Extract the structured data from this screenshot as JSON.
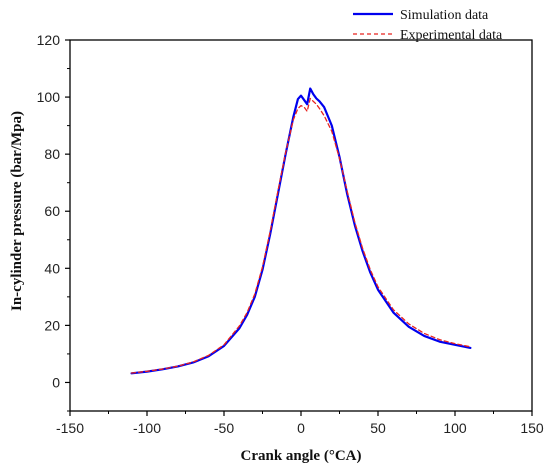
{
  "chart_data": {
    "type": "line",
    "title": "",
    "xlabel": "Crank angle (°CA)",
    "ylabel": "In-cylinder pressure (bar/Mpa)",
    "xlim": [
      -150,
      150
    ],
    "ylim": [
      -10,
      120
    ],
    "xticks": [
      -150,
      -100,
      -50,
      0,
      50,
      100,
      150
    ],
    "yticks": [
      0,
      20,
      40,
      60,
      80,
      100,
      120
    ],
    "grid": false,
    "legend_position": "top-right",
    "series": [
      {
        "name": "Simulation data",
        "color": "#0000ee",
        "style": "solid",
        "x": [
          -110,
          -100,
          -90,
          -80,
          -70,
          -60,
          -50,
          -40,
          -35,
          -30,
          -25,
          -20,
          -15,
          -10,
          -5,
          -2,
          0,
          2,
          4,
          6,
          8,
          10,
          12,
          15,
          20,
          25,
          30,
          35,
          40,
          45,
          50,
          60,
          70,
          80,
          90,
          100,
          110
        ],
        "y": [
          3.2,
          3.8,
          4.6,
          5.6,
          7.0,
          9.2,
          12.8,
          19.0,
          23.7,
          30.0,
          39.5,
          52.0,
          66.0,
          80.0,
          93.0,
          99.3,
          100.5,
          99.0,
          97.5,
          103.0,
          101.0,
          99.5,
          98.5,
          96.5,
          90.0,
          79.0,
          66.0,
          55.0,
          46.0,
          38.5,
          32.5,
          24.5,
          19.5,
          16.3,
          14.3,
          13.2,
          12.1
        ]
      },
      {
        "name": "Experimental data",
        "color": "#e8231f",
        "style": "dashed",
        "x": [
          -110,
          -100,
          -90,
          -80,
          -70,
          -60,
          -50,
          -40,
          -35,
          -30,
          -25,
          -20,
          -15,
          -10,
          -5,
          -2,
          0,
          2,
          4,
          6,
          8,
          10,
          12,
          15,
          20,
          25,
          30,
          35,
          40,
          45,
          50,
          60,
          70,
          80,
          90,
          100,
          110
        ],
        "y": [
          3.3,
          3.9,
          4.7,
          5.7,
          7.2,
          9.5,
          13.2,
          19.8,
          24.5,
          31.0,
          40.5,
          53.0,
          67.0,
          80.5,
          92.0,
          96.0,
          97.0,
          96.5,
          95.0,
          99.5,
          98.5,
          97.5,
          96.0,
          93.5,
          88.0,
          78.5,
          67.0,
          56.0,
          47.0,
          39.5,
          33.5,
          25.5,
          20.5,
          17.2,
          15.0,
          13.6,
          12.5
        ]
      }
    ]
  }
}
